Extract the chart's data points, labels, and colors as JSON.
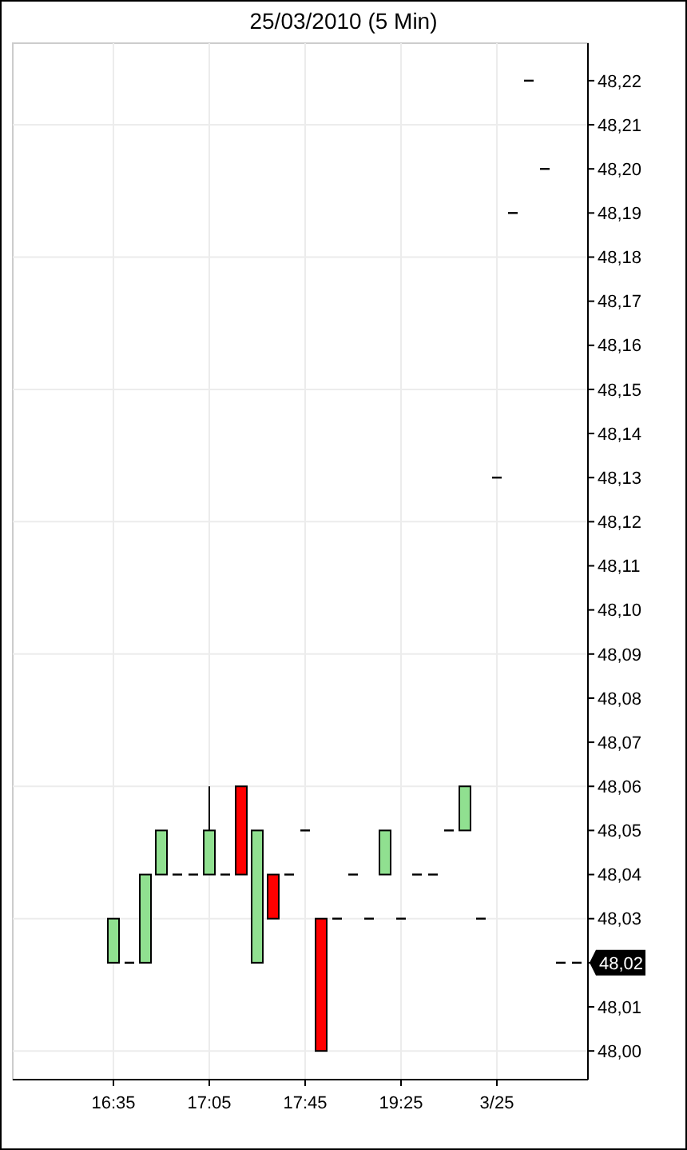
{
  "chart_data": {
    "type": "candlestick",
    "title": "25/03/2010 (5 Min)",
    "categories": [
      "16:35",
      null,
      null,
      null,
      null,
      null,
      "17:05",
      null,
      null,
      null,
      null,
      null,
      "17:45",
      null,
      null,
      null,
      null,
      null,
      "19:25",
      null,
      null,
      null,
      null,
      null,
      "3/25",
      null,
      null,
      null,
      null,
      null
    ],
    "ohlc": [
      [
        48.02,
        48.03,
        48.02,
        48.03
      ],
      [
        48.02,
        48.02,
        48.02,
        48.02
      ],
      [
        48.02,
        48.04,
        48.02,
        48.04
      ],
      [
        48.04,
        48.05,
        48.04,
        48.05
      ],
      [
        48.04,
        48.04,
        48.04,
        48.04
      ],
      [
        48.04,
        48.04,
        48.04,
        48.04
      ],
      [
        48.04,
        48.06,
        48.04,
        48.05
      ],
      [
        48.04,
        48.04,
        48.04,
        48.04
      ],
      [
        48.06,
        48.06,
        48.04,
        48.04
      ],
      [
        48.02,
        48.05,
        48.02,
        48.05
      ],
      [
        48.04,
        48.04,
        48.03,
        48.03
      ],
      [
        48.04,
        48.04,
        48.04,
        48.04
      ],
      [
        48.05,
        48.05,
        48.05,
        48.05
      ],
      [
        48.03,
        48.03,
        48.0,
        48.0
      ],
      [
        48.03,
        48.03,
        48.03,
        48.03
      ],
      [
        48.04,
        48.04,
        48.04,
        48.04
      ],
      [
        48.03,
        48.03,
        48.03,
        48.03
      ],
      [
        48.04,
        48.05,
        48.04,
        48.05
      ],
      [
        48.03,
        48.03,
        48.03,
        48.03
      ],
      [
        48.04,
        48.04,
        48.04,
        48.04
      ],
      [
        48.04,
        48.04,
        48.04,
        48.04
      ],
      [
        48.05,
        48.05,
        48.05,
        48.05
      ],
      [
        48.05,
        48.06,
        48.05,
        48.06
      ],
      [
        48.03,
        48.03,
        48.03,
        48.03
      ],
      [
        48.13,
        48.13,
        48.13,
        48.13
      ],
      [
        48.19,
        48.19,
        48.19,
        48.19
      ],
      [
        48.22,
        48.22,
        48.22,
        48.22
      ],
      [
        48.2,
        48.2,
        48.2,
        48.2
      ],
      [
        48.02,
        48.02,
        48.02,
        48.02
      ],
      [
        48.02,
        48.02,
        48.02,
        48.02
      ]
    ],
    "colors": [
      "#90e090",
      "#000000",
      "#90e090",
      "#90e090",
      "#000000",
      "#000000",
      "#90e090",
      "#000000",
      "#ff0000",
      "#90e090",
      "#ff0000",
      "#000000",
      "#000000",
      "#ff0000",
      "#000000",
      "#000000",
      "#000000",
      "#90e090",
      "#000000",
      "#000000",
      "#000000",
      "#000000",
      "#90e090",
      "#000000",
      "#000000",
      "#000000",
      "#000000",
      "#000000",
      "#000000",
      "#000000"
    ],
    "ylim": [
      47.9935,
      48.2285
    ],
    "yticks": [
      {
        "value": 48.0,
        "label": "48,00"
      },
      {
        "value": 48.01,
        "label": "48,01"
      },
      {
        "value": 48.02,
        "label": null
      },
      {
        "value": 48.03,
        "label": "48,03"
      },
      {
        "value": 48.04,
        "label": "48,04"
      },
      {
        "value": 48.05,
        "label": "48,05"
      },
      {
        "value": 48.06,
        "label": "48,06"
      },
      {
        "value": 48.07,
        "label": "48,07"
      },
      {
        "value": 48.08,
        "label": "48,08"
      },
      {
        "value": 48.09,
        "label": "48,09"
      },
      {
        "value": 48.1,
        "label": "48,10"
      },
      {
        "value": 48.11,
        "label": "48,11"
      },
      {
        "value": 48.12,
        "label": "48,12"
      },
      {
        "value": 48.13,
        "label": "48,13"
      },
      {
        "value": 48.14,
        "label": "48,14"
      },
      {
        "value": 48.15,
        "label": "48,15"
      },
      {
        "value": 48.16,
        "label": "48,16"
      },
      {
        "value": 48.17,
        "label": "48,17"
      },
      {
        "value": 48.18,
        "label": "48,18"
      },
      {
        "value": 48.19,
        "label": "48,19"
      },
      {
        "value": 48.2,
        "label": "48,20"
      },
      {
        "value": 48.21,
        "label": "48,21"
      },
      {
        "value": 48.22,
        "label": "48,22"
      }
    ],
    "annotations": [
      "48,02"
    ],
    "grid": true
  }
}
